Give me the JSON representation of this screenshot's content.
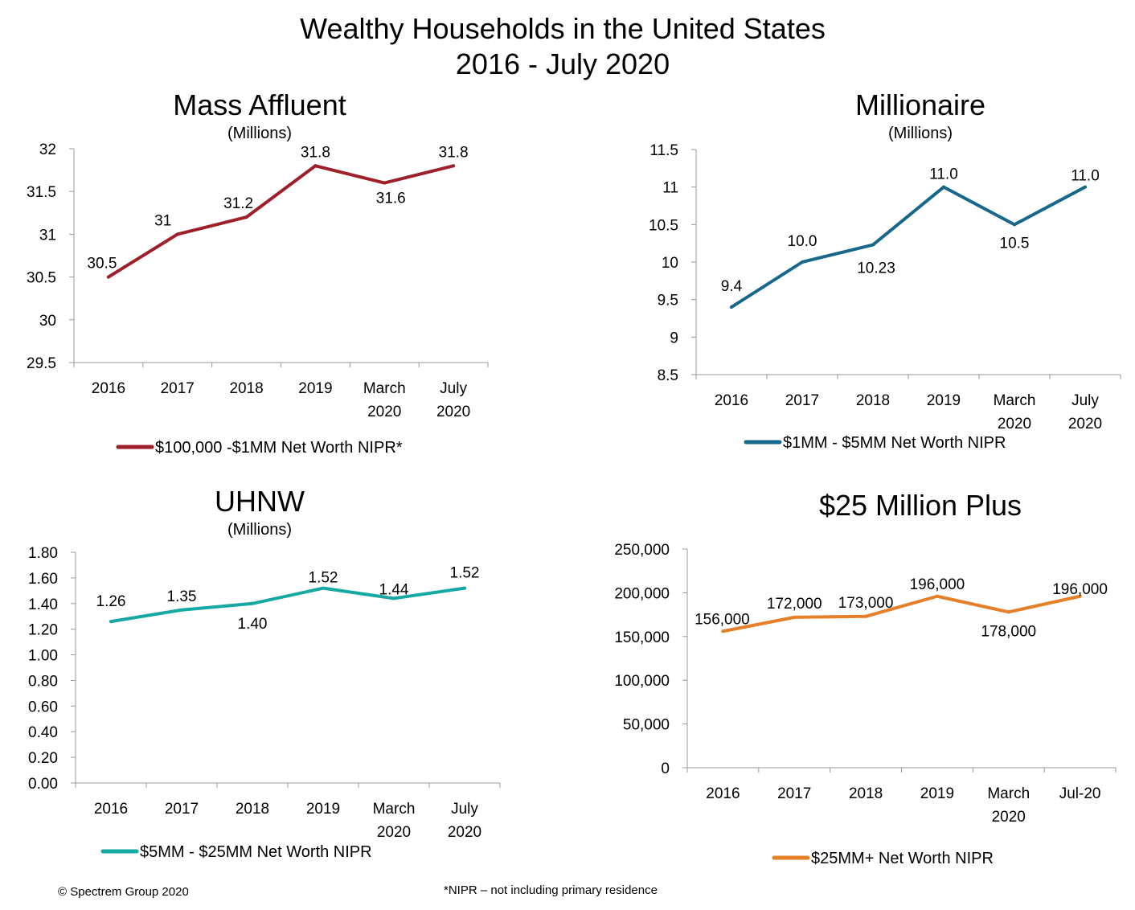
{
  "title_line1": "Wealthy Households in the United States",
  "title_line2": "2016 - July 2020",
  "copyright": "© Spectrem Group 2020",
  "footnote": "*NIPR – not including primary residence",
  "chart_data": [
    {
      "type": "line",
      "title": "Mass Affluent",
      "subtitle": "(Millions)",
      "categories": [
        [
          "2016"
        ],
        [
          "2017"
        ],
        [
          "2018"
        ],
        [
          "2019"
        ],
        [
          "March",
          "2020"
        ],
        [
          "July",
          "2020"
        ]
      ],
      "series": [
        {
          "name": "$100,000 -$1MM Net Worth NIPR*",
          "values": [
            30.5,
            31,
            31.2,
            31.8,
            31.6,
            31.8
          ],
          "labels": [
            "30.5",
            "31",
            "31.2",
            "31.8",
            "31.6",
            "31.8"
          ],
          "color": "#9e1f2a"
        }
      ],
      "yticks": [
        "29.5",
        "30",
        "30.5",
        "31",
        "31.5",
        "32"
      ],
      "ylim": [
        29.5,
        32
      ],
      "legend": "bottom",
      "grid": false
    },
    {
      "type": "line",
      "title": "Millionaire",
      "subtitle": "(Millions)",
      "categories": [
        [
          "2016"
        ],
        [
          "2017"
        ],
        [
          "2018"
        ],
        [
          "2019"
        ],
        [
          "March",
          "2020"
        ],
        [
          "July",
          "2020"
        ]
      ],
      "series": [
        {
          "name": "$1MM - $5MM Net Worth NIPR",
          "values": [
            9.4,
            10.0,
            10.23,
            11.0,
            10.5,
            11.0
          ],
          "labels": [
            "9.4",
            "10.0",
            "10.23",
            "11.0",
            "10.5",
            "11.0"
          ],
          "color": "#17678a"
        }
      ],
      "yticks": [
        "8.5",
        "9",
        "9.5",
        "10",
        "10.5",
        "11",
        "11.5"
      ],
      "ylim": [
        8.5,
        11.5
      ],
      "legend": "bottom",
      "grid": false
    },
    {
      "type": "line",
      "title": "UHNW",
      "subtitle": "(Millions)",
      "categories": [
        [
          "2016"
        ],
        [
          "2017"
        ],
        [
          "2018"
        ],
        [
          "2019"
        ],
        [
          "March",
          "2020"
        ],
        [
          "July",
          "2020"
        ]
      ],
      "series": [
        {
          "name": "$5MM - $25MM Net Worth NIPR",
          "values": [
            1.26,
            1.35,
            1.4,
            1.52,
            1.44,
            1.52
          ],
          "labels": [
            "1.26",
            "1.35",
            "1.40",
            "1.52",
            "1.44",
            "1.52"
          ],
          "color": "#16a8a3"
        }
      ],
      "yticks": [
        "0.00",
        "0.20",
        "0.40",
        "0.60",
        "0.80",
        "1.00",
        "1.20",
        "1.40",
        "1.60",
        "1.80"
      ],
      "ylim": [
        0,
        1.8
      ],
      "legend": "bottom",
      "grid": false
    },
    {
      "type": "line",
      "title": "$25 Million Plus",
      "subtitle": "",
      "categories": [
        [
          "2016"
        ],
        [
          "2017"
        ],
        [
          "2018"
        ],
        [
          "2019"
        ],
        [
          "March",
          "2020"
        ],
        [
          "Jul-20"
        ]
      ],
      "series": [
        {
          "name": "$25MM+ Net Worth NIPR",
          "values": [
            156000,
            172000,
            173000,
            196000,
            178000,
            196000
          ],
          "labels": [
            "156,000",
            "172,000",
            "173,000",
            "196,000",
            "178,000",
            "196,000"
          ],
          "color": "#e57f28"
        }
      ],
      "yticks": [
        "0",
        "50,000",
        "100,000",
        "150,000",
        "200,000",
        "250,000"
      ],
      "ylim": [
        0,
        250000
      ],
      "legend": "bottom",
      "grid": false
    }
  ]
}
